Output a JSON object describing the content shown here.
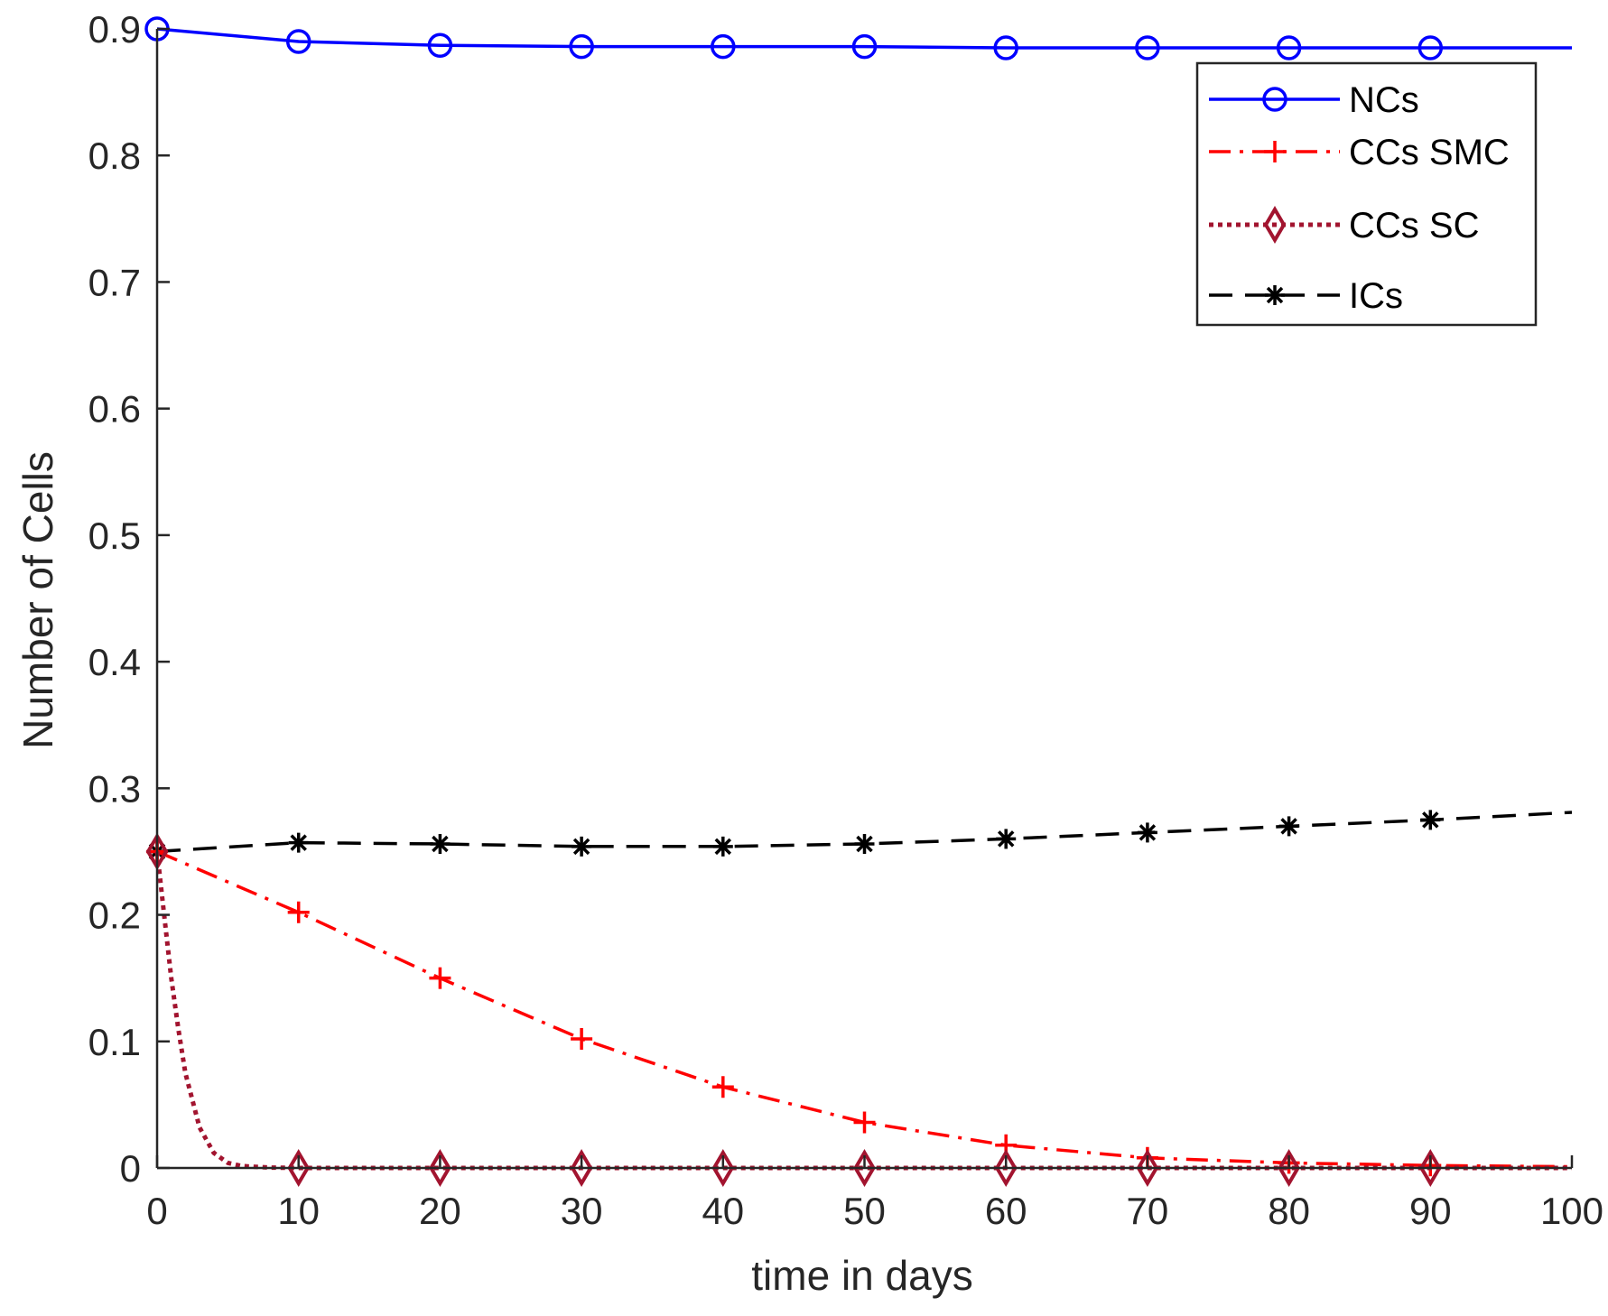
{
  "chart_data": {
    "type": "line",
    "title": "",
    "xlabel": "time in days",
    "ylabel": "Number of Cells",
    "xlim": [
      0,
      100
    ],
    "ylim": [
      0,
      0.9
    ],
    "xticks": [
      0,
      10,
      20,
      30,
      40,
      50,
      60,
      70,
      80,
      90,
      100
    ],
    "yticks": [
      0,
      0.1,
      0.2,
      0.3,
      0.4,
      0.5,
      0.6,
      0.7,
      0.8,
      0.9
    ],
    "xtick_labels": [
      "0",
      "10",
      "20",
      "30",
      "40",
      "50",
      "60",
      "70",
      "80",
      "90",
      "100"
    ],
    "ytick_labels": [
      "0",
      "0.1",
      "0.2",
      "0.3",
      "0.4",
      "0.5",
      "0.6",
      "0.7",
      "0.8",
      "0.9"
    ],
    "grid": false,
    "legend_position": "top-right",
    "series": [
      {
        "name": "NCs",
        "color": "#0000ff",
        "line_style": "solid",
        "marker": "circle",
        "x": [
          0,
          10,
          20,
          30,
          40,
          50,
          60,
          70,
          80,
          90,
          100
        ],
        "y": [
          0.9,
          0.89,
          0.887,
          0.886,
          0.886,
          0.886,
          0.885,
          0.885,
          0.885,
          0.885,
          0.885
        ],
        "marker_x": [
          0,
          10,
          20,
          30,
          40,
          50,
          60,
          70,
          80,
          90
        ]
      },
      {
        "name": "CCs SMC",
        "color": "#ff0000",
        "line_style": "dashdot",
        "marker": "plus",
        "x": [
          0,
          10,
          20,
          30,
          40,
          50,
          60,
          70,
          80,
          90,
          100
        ],
        "y": [
          0.25,
          0.202,
          0.15,
          0.102,
          0.064,
          0.036,
          0.018,
          0.008,
          0.004,
          0.002,
          0.001
        ],
        "marker_x": [
          0,
          10,
          20,
          30,
          40,
          50,
          60,
          70,
          80,
          90
        ]
      },
      {
        "name": "CCs SC",
        "color": "#a2142f",
        "line_style": "dotted",
        "marker": "diamond",
        "x": [
          0,
          0.5,
          1,
          1.5,
          2,
          3,
          4,
          5,
          6,
          8,
          10,
          20,
          30,
          40,
          50,
          60,
          70,
          80,
          90,
          100
        ],
        "y": [
          0.25,
          0.2,
          0.15,
          0.11,
          0.075,
          0.032,
          0.012,
          0.004,
          0.0015,
          0.0003,
          0,
          0,
          0,
          0,
          0,
          0,
          0,
          0,
          0,
          0
        ],
        "marker_x": [
          0,
          10,
          20,
          30,
          40,
          50,
          60,
          70,
          80,
          90
        ]
      },
      {
        "name": "ICs",
        "color": "#000000",
        "line_style": "dashed",
        "marker": "asterisk",
        "x": [
          0,
          10,
          20,
          30,
          40,
          50,
          60,
          70,
          80,
          90,
          100
        ],
        "y": [
          0.25,
          0.257,
          0.256,
          0.254,
          0.254,
          0.256,
          0.26,
          0.265,
          0.27,
          0.275,
          0.281
        ],
        "marker_x": [
          0,
          10,
          20,
          30,
          40,
          50,
          60,
          70,
          80,
          90
        ]
      }
    ]
  }
}
